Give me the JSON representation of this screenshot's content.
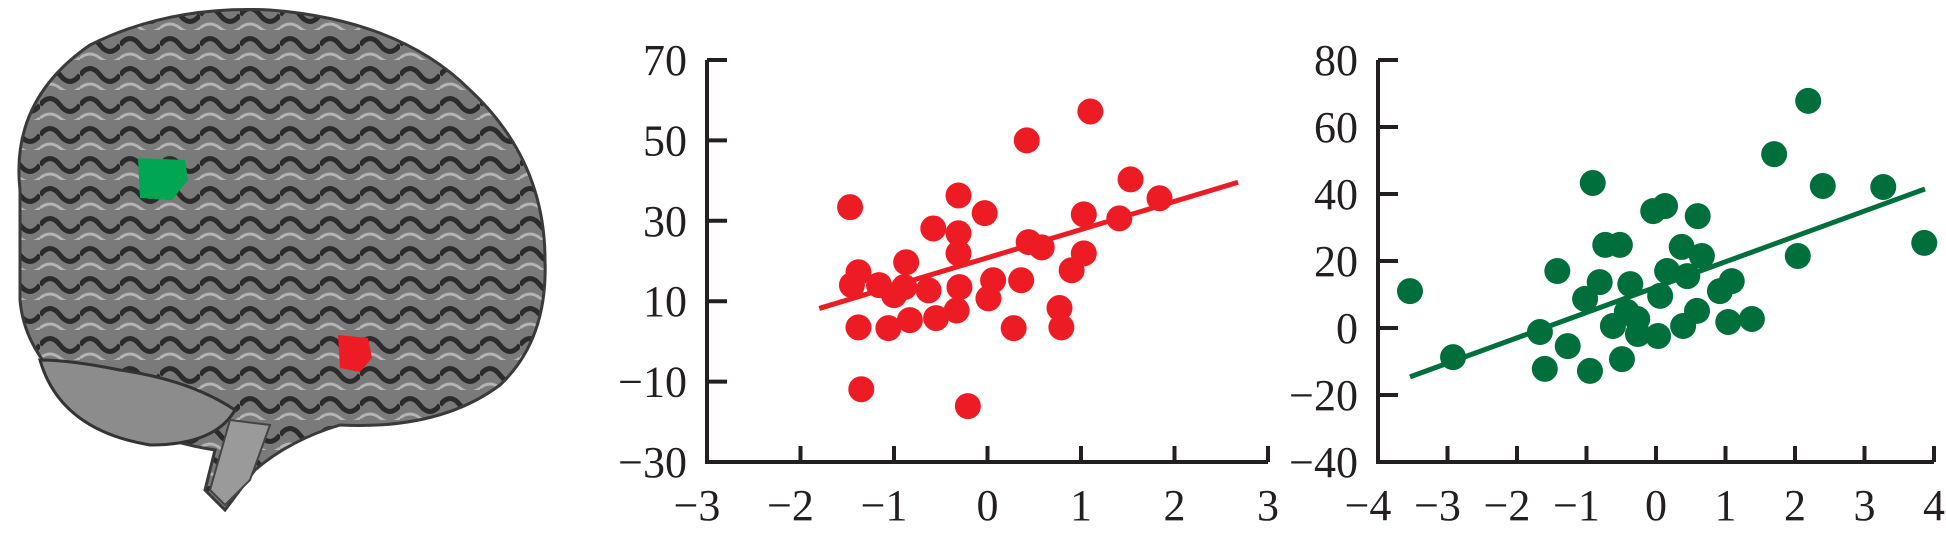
{
  "brain_image": {
    "regions": [
      {
        "color": "#00a651",
        "label": ""
      },
      {
        "color": "#ed1c24",
        "label": ""
      }
    ]
  },
  "chart_data": [
    {
      "type": "scatter",
      "title": "",
      "xlabel": "",
      "ylabel": "",
      "xlim": [
        -3,
        3
      ],
      "ylim": [
        -30,
        70
      ],
      "xticks": [
        -3,
        -2,
        -1,
        0,
        1,
        2,
        3
      ],
      "yticks": [
        -30,
        -10,
        10,
        30,
        50,
        70
      ],
      "xtick_labels": [
        "−3",
        "−2",
        "−1",
        "0",
        "1",
        "2",
        "3"
      ],
      "ytick_labels": [
        "−30",
        "−10",
        "10",
        "30",
        "50",
        "70"
      ],
      "grid": false,
      "color": "#ed1c24",
      "points": [
        [
          1.1,
          57.2
        ],
        [
          0.42,
          50.0
        ],
        [
          1.53,
          40.3
        ],
        [
          -1.47,
          33.4
        ],
        [
          -0.31,
          36.3
        ],
        [
          -0.03,
          31.9
        ],
        [
          1.84,
          35.6
        ],
        [
          1.03,
          31.6
        ],
        [
          1.41,
          30.6
        ],
        [
          -0.58,
          28.1
        ],
        [
          -0.31,
          26.9
        ],
        [
          -0.31,
          21.9
        ],
        [
          0.44,
          24.7
        ],
        [
          0.58,
          23.4
        ],
        [
          1.03,
          21.9
        ],
        [
          -0.87,
          19.7
        ],
        [
          -1.38,
          17.2
        ],
        [
          0.9,
          17.7
        ],
        [
          0.36,
          15.2
        ],
        [
          0.06,
          15.2
        ],
        [
          -1.45,
          14.0
        ],
        [
          -1.16,
          14.0
        ],
        [
          -0.89,
          13.5
        ],
        [
          -0.63,
          12.7
        ],
        [
          -0.3,
          13.5
        ],
        [
          0.01,
          10.7
        ],
        [
          -1.0,
          11.5
        ],
        [
          0.77,
          8.3
        ],
        [
          0.79,
          3.5
        ],
        [
          -1.38,
          3.5
        ],
        [
          -1.06,
          3.3
        ],
        [
          -0.83,
          5.3
        ],
        [
          -0.55,
          5.8
        ],
        [
          -0.33,
          7.7
        ],
        [
          0.28,
          3.3
        ],
        [
          -1.35,
          -11.9
        ],
        [
          -0.21,
          -16.1
        ]
      ],
      "fit_line": [
        [
          -1.8,
          8.2
        ],
        [
          2.68,
          39.6
        ]
      ]
    },
    {
      "type": "scatter",
      "title": "",
      "xlabel": "",
      "ylabel": "",
      "xlim": [
        -4,
        4
      ],
      "ylim": [
        -40,
        80
      ],
      "xticks": [
        -4,
        -3,
        -2,
        -1,
        0,
        1,
        2,
        3,
        4
      ],
      "yticks": [
        -40,
        -20,
        0,
        20,
        40,
        60,
        80
      ],
      "xtick_labels": [
        "−4",
        "−3",
        "−2",
        "−1",
        "0",
        "1",
        "2",
        "3",
        "4"
      ],
      "ytick_labels": [
        "−40",
        "−20",
        "0",
        "20",
        "40",
        "60",
        "80"
      ],
      "grid": false,
      "color": "#006f3c",
      "points": [
        [
          2.19,
          67.8
        ],
        [
          1.7,
          51.9
        ],
        [
          -0.91,
          43.3
        ],
        [
          2.4,
          42.4
        ],
        [
          3.27,
          42.1
        ],
        [
          0.13,
          36.4
        ],
        [
          -0.04,
          34.9
        ],
        [
          0.6,
          33.4
        ],
        [
          3.86,
          25.4
        ],
        [
          -0.73,
          24.8
        ],
        [
          -0.52,
          24.8
        ],
        [
          2.04,
          21.5
        ],
        [
          0.37,
          24.2
        ],
        [
          0.66,
          21.5
        ],
        [
          -1.42,
          17.0
        ],
        [
          0.16,
          17.0
        ],
        [
          0.45,
          15.5
        ],
        [
          -0.81,
          13.7
        ],
        [
          -0.37,
          13.1
        ],
        [
          1.09,
          14.0
        ],
        [
          0.92,
          11.0
        ],
        [
          -1.02,
          8.7
        ],
        [
          0.06,
          9.6
        ],
        [
          -0.42,
          4.8
        ],
        [
          -0.62,
          0.6
        ],
        [
          0.59,
          5.1
        ],
        [
          1.04,
          1.8
        ],
        [
          1.38,
          2.7
        ],
        [
          0.39,
          0.6
        ],
        [
          0.03,
          -2.4
        ],
        [
          -0.26,
          -1.8
        ],
        [
          -0.27,
          2.7
        ],
        [
          -1.67,
          -1.2
        ],
        [
          -2.92,
          -8.7
        ],
        [
          -1.27,
          -5.4
        ],
        [
          -1.6,
          -12.2
        ],
        [
          -0.95,
          -12.8
        ],
        [
          -0.49,
          -9.3
        ],
        [
          -3.54,
          11.0
        ]
      ],
      "fit_line": [
        [
          -3.54,
          -14.6
        ],
        [
          3.87,
          41.5
        ]
      ]
    }
  ]
}
